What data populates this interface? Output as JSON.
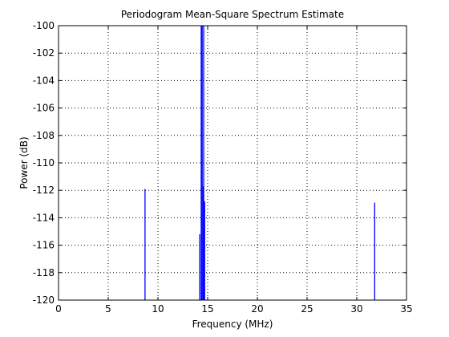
{
  "chart_data": {
    "type": "line",
    "title": "Periodogram Mean-Square Spectrum Estimate",
    "xlabel": "Frequency (MHz)",
    "ylabel": "Power (dB)",
    "xlim": [
      0,
      35
    ],
    "ylim": [
      -120,
      -100
    ],
    "xticks": [
      0,
      5,
      10,
      15,
      20,
      25,
      30,
      35
    ],
    "yticks": [
      -120,
      -118,
      -116,
      -114,
      -112,
      -110,
      -108,
      -106,
      -104,
      -102,
      -100
    ],
    "grid": true,
    "line_color": "#0000ff",
    "series": [
      {
        "points": [
          {
            "x": 8.7,
            "y": -111.9
          },
          {
            "x": 14.2,
            "y": -115.2
          },
          {
            "x": 14.35,
            "y": -100
          },
          {
            "x": 14.45,
            "y": -100
          },
          {
            "x": 14.55,
            "y": -111.7
          },
          {
            "x": 14.6,
            "y": -100
          },
          {
            "x": 14.7,
            "y": -112.8
          },
          {
            "x": 31.8,
            "y": -112.9
          }
        ]
      }
    ]
  }
}
